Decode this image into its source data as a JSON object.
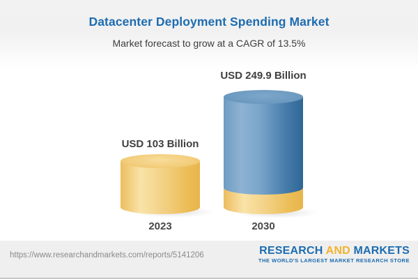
{
  "header": {
    "title": "Datacenter Deployment Spending Market",
    "subtitle": "Market forecast to grow at a CAGR of 13.5%"
  },
  "chart_data": {
    "type": "bar",
    "subtype": "3d-cylinder",
    "categories": [
      "2023",
      "2030"
    ],
    "values": [
      103,
      249.9
    ],
    "unit": "USD Billion",
    "cagr_percent": 13.5,
    "title": "Datacenter Deployment Spending Market",
    "subtitle": "Market forecast to grow at a CAGR of 13.5%",
    "bars": [
      {
        "year": "2023",
        "value": 103,
        "label": "USD 103 Billion",
        "segments": [
          "base"
        ]
      },
      {
        "year": "2030",
        "value": 249.9,
        "label": "USD 249.9 Billion",
        "segments": [
          "base",
          "growth"
        ]
      }
    ],
    "colors": {
      "base_segment": "#f0c669",
      "growth_segment": "#5e8db7",
      "title_text": "#1d6cb0",
      "label_text": "#3f3f3f"
    },
    "legend": "none",
    "grid": false
  },
  "footer": {
    "url": "https://www.researchandmarkets.com/reports/5141206",
    "logo": {
      "part1": "RESEARCH",
      "part2": "AND",
      "part3": "MARKETS",
      "tagline": "THE WORLD'S LARGEST MARKET RESEARCH STORE"
    }
  }
}
